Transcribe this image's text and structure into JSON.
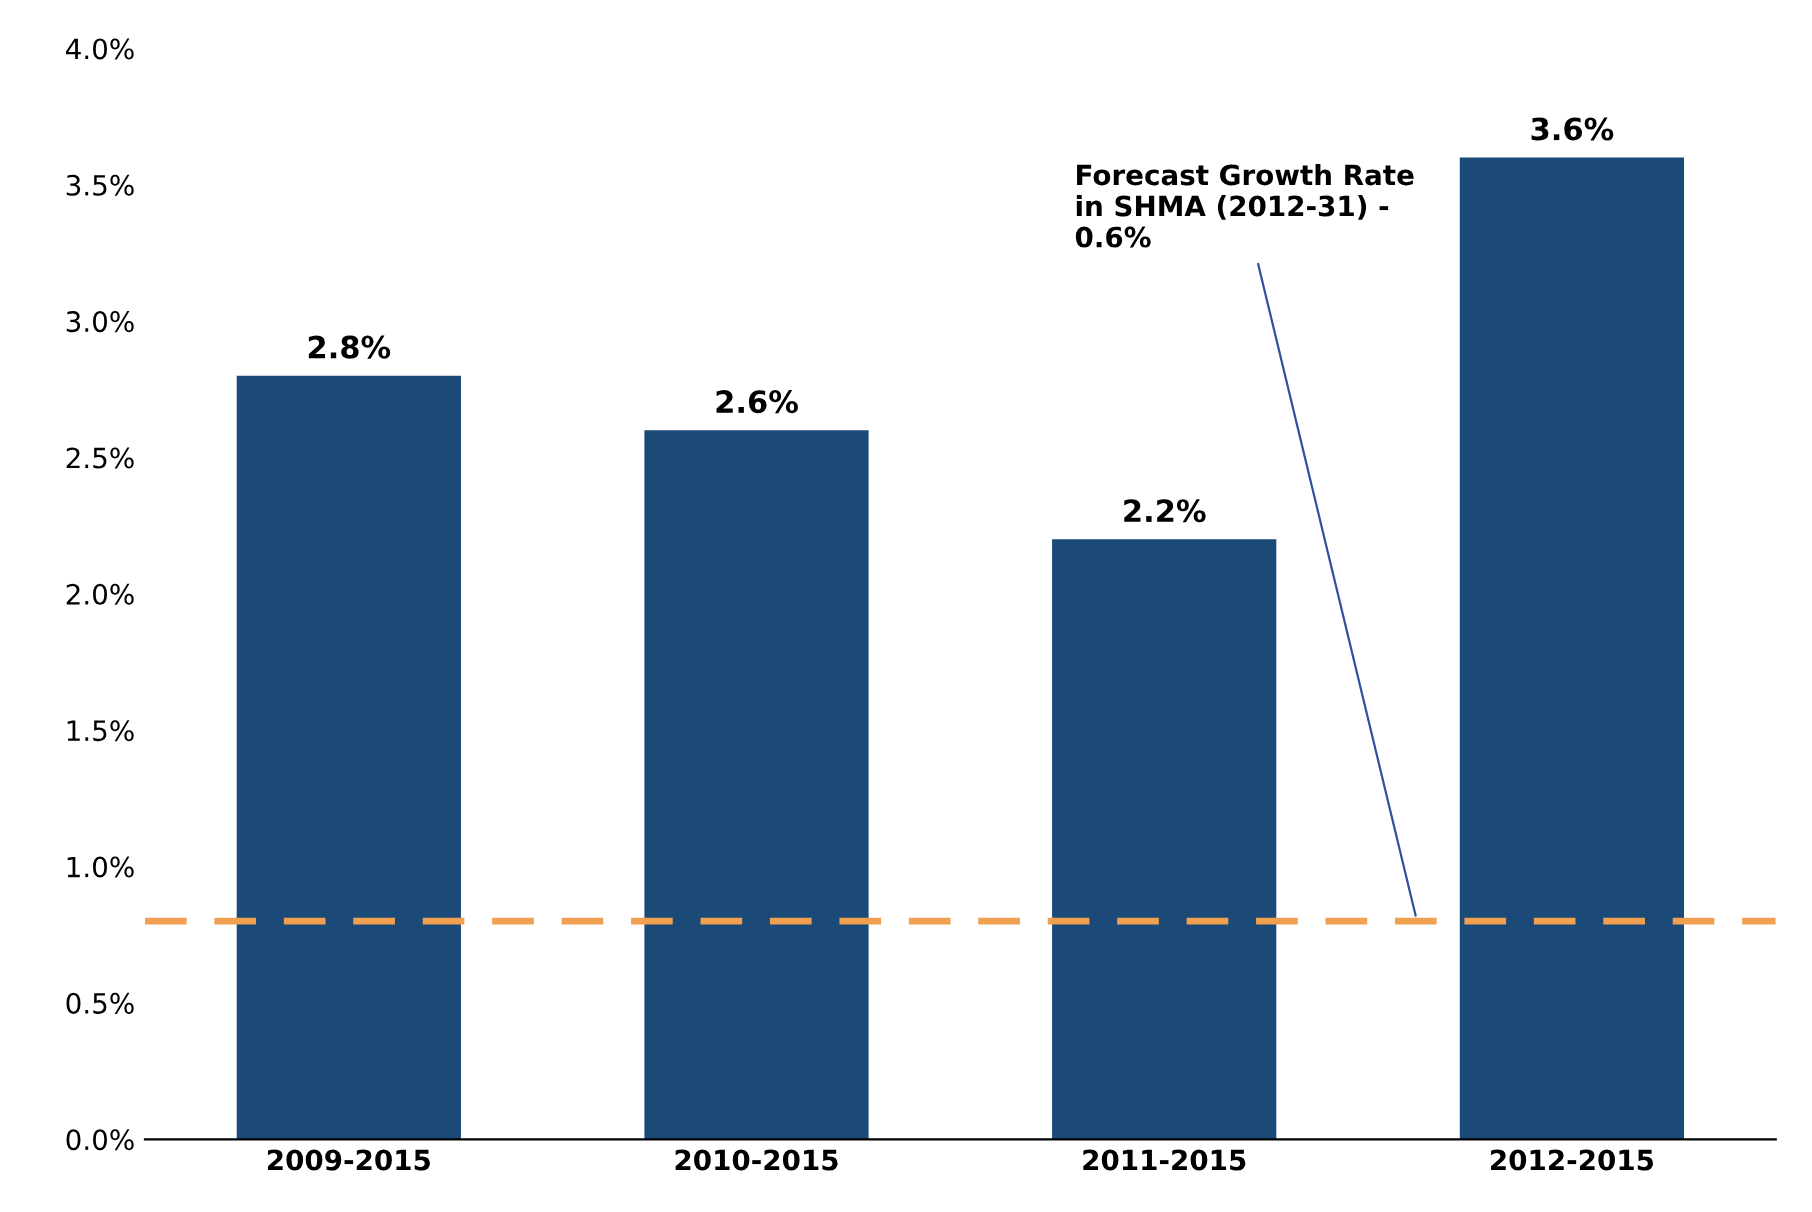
{
  "chart_data": {
    "type": "bar",
    "categories": [
      "2009-2015",
      "2010-2015",
      "2011-2015",
      "2012-2015"
    ],
    "values": [
      2.8,
      2.6,
      2.2,
      3.6
    ],
    "value_labels": [
      "2.8%",
      "2.6%",
      "2.2%",
      "3.6%"
    ],
    "color": "#1c4a78",
    "ylim": [
      0,
      4
    ],
    "yticks": [
      {
        "value": 0,
        "label": "0.0%"
      },
      {
        "value": 0.5,
        "label": "0.5%"
      },
      {
        "value": 1,
        "label": "1.0%"
      },
      {
        "value": 1.5,
        "label": "1.5%"
      },
      {
        "value": 2,
        "label": "2.0%"
      },
      {
        "value": 2.5,
        "label": "2.5%"
      },
      {
        "value": 3,
        "label": "3.0%"
      },
      {
        "value": 3.5,
        "label": "3.5%"
      },
      {
        "value": 4,
        "label": "4.0%"
      }
    ],
    "ref_lines": [
      {
        "axis": "y",
        "value": 0.8,
        "label": "Forecast Growth Rate\nin SHMA (2012-31) -\n0.6%",
        "color": "#f0a050",
        "line_style": "dashed"
      }
    ],
    "grid": false
  }
}
